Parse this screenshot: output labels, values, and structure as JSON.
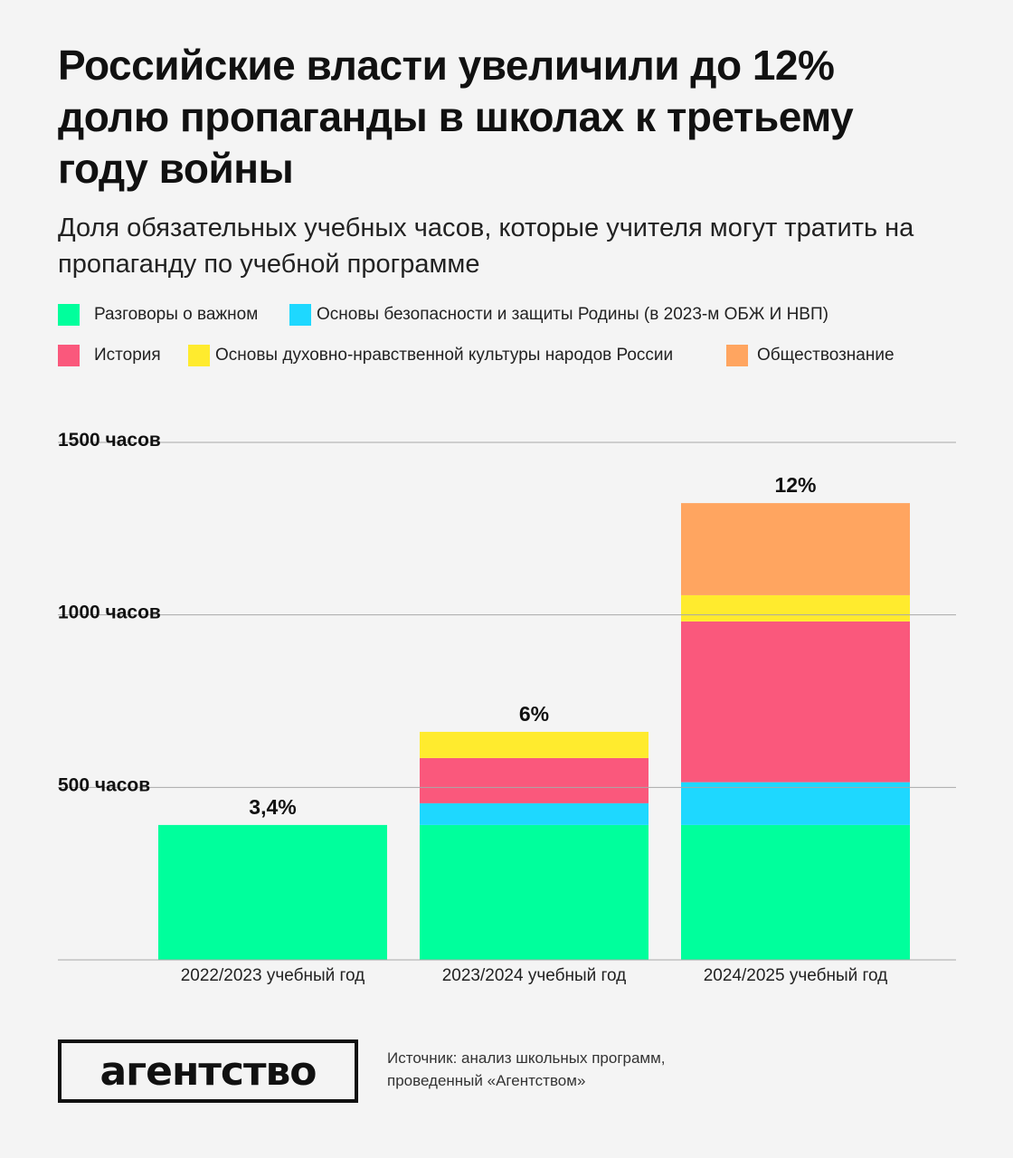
{
  "title": "Российские власти увеличили до 12% долю пропаганды в школах к третьему году войны",
  "subtitle": "Доля обязательных учебных часов, которые учителя могут тратить на пропаганду по учебной программе",
  "legend": [
    {
      "label": "Разговоры о важном",
      "color": "#00ff9c"
    },
    {
      "label": "Основы безопасности и защиты Родины (в 2023-м ОБЖ И НВП)",
      "color": "#1ed8ff"
    },
    {
      "label": "История",
      "color": "#fa587c"
    },
    {
      "label": "Основы духовно-нравственной культуры народов России",
      "color": "#ffeb2e"
    },
    {
      "label": "Обществознание",
      "color": "#ffa560"
    }
  ],
  "chart_data": {
    "type": "bar",
    "stacked": true,
    "categories": [
      "2022/2023 учебный год",
      "2023/2024 учебный год",
      "2024/2025 учебный год"
    ],
    "series": [
      {
        "name": "Разговоры о важном",
        "color": "#00ff9c",
        "values": [
          391,
          391,
          391
        ]
      },
      {
        "name": "Основы безопасности и защиты Родины (в 2023-м ОБЖ И НВП)",
        "color": "#1ed8ff",
        "values": [
          0,
          63,
          124
        ]
      },
      {
        "name": "История",
        "color": "#fa587c",
        "values": [
          0,
          131,
          466
        ]
      },
      {
        "name": "Основы духовно-нравственной культуры народов России",
        "color": "#ffeb2e",
        "values": [
          0,
          76,
          76
        ]
      },
      {
        "name": "Обществознание",
        "color": "#ffa560",
        "values": [
          0,
          0,
          267
        ]
      }
    ],
    "data_labels": [
      "3,4%",
      "6%",
      "12%"
    ],
    "y_ticks": [
      {
        "value": 500,
        "label": "500 часов"
      },
      {
        "value": 1000,
        "label": "1000 часов"
      },
      {
        "value": 1500,
        "label": "1500 часов"
      }
    ],
    "ylim": [
      0,
      1500
    ],
    "grid": true
  },
  "source": {
    "line1": "Источник: анализ школьных программ,",
    "line2": "проведенный «Агентством»"
  },
  "logo": "агентство"
}
